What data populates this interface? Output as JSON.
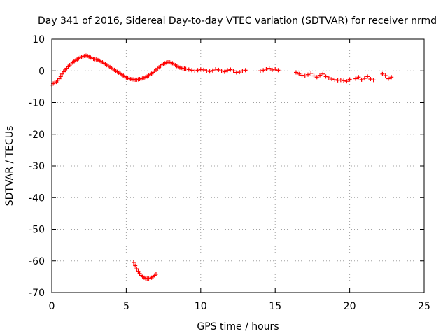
{
  "chart_data": {
    "type": "scatter",
    "title": "Day 341 of 2016, Sidereal Day-to-day VTEC variation (SDTVAR) for receiver nrmd",
    "xlabel": "GPS time / hours",
    "ylabel": "SDTVAR / TECUs",
    "xlim": [
      0,
      25
    ],
    "ylim": [
      -70,
      10
    ],
    "xticks": [
      0,
      5,
      10,
      15,
      20,
      25
    ],
    "yticks": [
      10,
      0,
      -10,
      -20,
      -30,
      -40,
      -50,
      -60,
      -70
    ],
    "grid": true,
    "marker": "plus",
    "color": "#ff0000",
    "series": [
      {
        "name": "SDTVAR",
        "x": [
          0.0,
          0.1,
          0.2,
          0.3,
          0.4,
          0.5,
          0.6,
          0.7,
          0.8,
          0.9,
          1.0,
          1.1,
          1.2,
          1.3,
          1.4,
          1.5,
          1.6,
          1.7,
          1.8,
          1.9,
          2.0,
          2.1,
          2.2,
          2.3,
          2.4,
          2.5,
          2.6,
          2.7,
          2.8,
          2.9,
          3.0,
          3.1,
          3.2,
          3.3,
          3.4,
          3.5,
          3.6,
          3.7,
          3.8,
          3.9,
          4.0,
          4.1,
          4.2,
          4.3,
          4.4,
          4.5,
          4.6,
          4.7,
          4.8,
          4.9,
          5.0,
          5.1,
          5.2,
          5.3,
          5.4,
          5.5,
          5.6,
          5.7,
          5.8,
          5.9,
          6.0,
          6.1,
          6.2,
          6.3,
          6.4,
          6.5,
          6.6,
          6.7,
          6.8,
          6.9,
          7.0,
          7.1,
          7.2,
          7.3,
          7.4,
          7.5,
          7.6,
          7.7,
          7.8,
          7.9,
          8.0,
          8.1,
          8.2,
          8.3,
          8.4,
          8.5,
          8.6,
          8.7,
          8.8,
          8.9,
          9.0,
          9.2,
          9.4,
          9.6,
          9.8,
          10.0,
          10.2,
          10.4,
          10.6,
          10.8,
          11.0,
          11.2,
          11.4,
          11.6,
          11.8,
          12.0,
          12.2,
          12.4,
          12.6,
          12.8,
          13.0,
          14.0,
          14.2,
          14.4,
          14.6,
          14.8,
          15.0,
          15.2,
          16.4,
          16.6,
          16.8,
          17.0,
          17.2,
          17.4,
          17.6,
          17.8,
          18.0,
          18.2,
          18.4,
          18.6,
          18.8,
          19.0,
          19.2,
          19.4,
          19.6,
          19.8,
          20.0,
          20.4,
          20.6,
          20.8,
          21.0,
          21.2,
          21.4,
          21.6,
          22.2,
          22.4,
          22.6,
          22.8,
          5.5,
          5.6,
          5.7,
          5.8,
          5.9,
          6.0,
          6.1,
          6.2,
          6.3,
          6.4,
          6.5,
          6.6,
          6.7,
          6.8,
          6.9,
          7.0
        ],
        "y": [
          -4.5,
          -4.0,
          -3.8,
          -3.5,
          -3.0,
          -2.5,
          -1.8,
          -1.0,
          -0.3,
          0.3,
          0.8,
          1.3,
          1.8,
          2.2,
          2.6,
          3.0,
          3.3,
          3.6,
          3.9,
          4.2,
          4.4,
          4.6,
          4.7,
          4.8,
          4.7,
          4.5,
          4.2,
          4.0,
          3.8,
          3.7,
          3.6,
          3.4,
          3.2,
          3.0,
          2.7,
          2.4,
          2.1,
          1.8,
          1.5,
          1.2,
          0.9,
          0.6,
          0.3,
          0.0,
          -0.3,
          -0.6,
          -0.9,
          -1.2,
          -1.5,
          -1.8,
          -2.1,
          -2.3,
          -2.5,
          -2.6,
          -2.7,
          -2.7,
          -2.8,
          -2.8,
          -2.7,
          -2.6,
          -2.5,
          -2.4,
          -2.2,
          -2.0,
          -1.8,
          -1.5,
          -1.2,
          -0.9,
          -0.5,
          -0.1,
          0.3,
          0.7,
          1.1,
          1.5,
          1.9,
          2.2,
          2.4,
          2.6,
          2.7,
          2.7,
          2.6,
          2.4,
          2.1,
          1.8,
          1.5,
          1.2,
          1.0,
          0.9,
          0.8,
          0.7,
          0.6,
          0.4,
          0.2,
          0.0,
          0.2,
          0.4,
          0.3,
          0.0,
          -0.2,
          0.1,
          0.5,
          0.3,
          0.0,
          -0.3,
          0.2,
          0.4,
          0.0,
          -0.5,
          -0.4,
          0.0,
          0.2,
          0.0,
          0.2,
          0.5,
          0.8,
          0.3,
          0.5,
          0.2,
          -0.5,
          -1.0,
          -1.4,
          -1.6,
          -1.2,
          -0.8,
          -1.6,
          -2.0,
          -1.4,
          -1.0,
          -1.8,
          -2.2,
          -2.6,
          -2.8,
          -3.0,
          -2.9,
          -3.1,
          -3.3,
          -2.7,
          -2.5,
          -2.0,
          -2.8,
          -2.4,
          -1.8,
          -2.6,
          -2.9,
          -1.0,
          -1.5,
          -2.5,
          -2.0,
          -60.5,
          -61.5,
          -62.5,
          -63.3,
          -64.0,
          -64.6,
          -65.0,
          -65.3,
          -65.5,
          -65.6,
          -65.6,
          -65.5,
          -65.3,
          -65.0,
          -64.6,
          -64.2
        ]
      }
    ]
  }
}
